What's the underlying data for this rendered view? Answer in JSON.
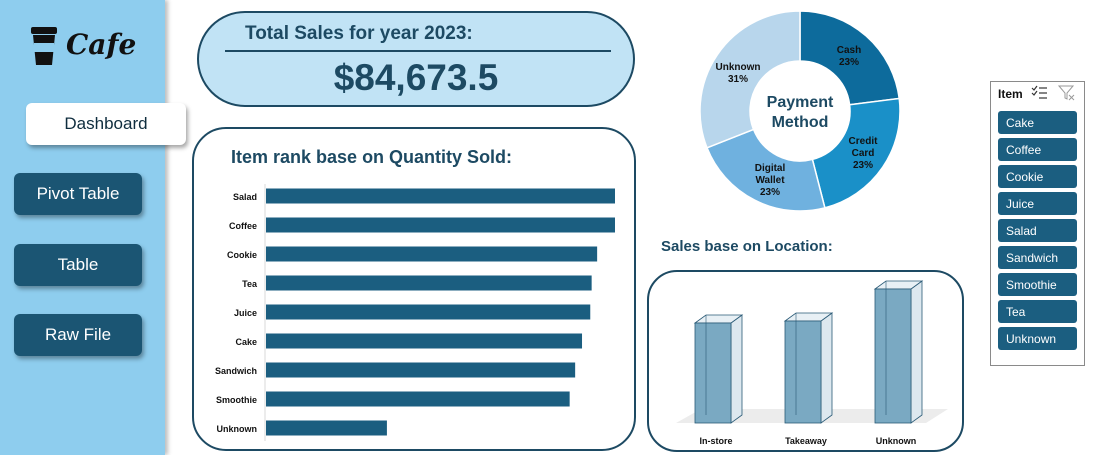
{
  "app": {
    "logo_text": "Cafe"
  },
  "sidebar": {
    "items": [
      {
        "label": "Dashboard",
        "active": true
      },
      {
        "label": "Pivot Table",
        "active": false
      },
      {
        "label": "Table",
        "active": false
      },
      {
        "label": "Raw File",
        "active": false
      }
    ]
  },
  "total_sales": {
    "title": "Total Sales for year 2023:",
    "value": "$84,673.5"
  },
  "colors": {
    "sidebar": "#8ecdee",
    "accent": "#1d4a63",
    "bar": "#1b5e80",
    "card_fill": "#c1e3f5"
  },
  "chart_data": [
    {
      "type": "bar",
      "orientation": "horizontal",
      "title": "Item rank base on Quantity Sold:",
      "categories": [
        "Salad",
        "Coffee",
        "Cookie",
        "Tea",
        "Juice",
        "Cake",
        "Sandwich",
        "Smoothie",
        "Unknown"
      ],
      "values": [
        1270,
        1270,
        1205,
        1185,
        1180,
        1150,
        1125,
        1105,
        440
      ],
      "xlim": [
        0,
        1270
      ],
      "axes_visible": false,
      "grid": false,
      "legend": "none"
    },
    {
      "type": "pie",
      "donut": true,
      "center_text": "Payment Method",
      "slices": [
        {
          "label": "Cash",
          "percent_label": "23%",
          "value": 23,
          "color": "#0d6b9c"
        },
        {
          "label": "Credit Card",
          "percent_label": "23%",
          "value": 23,
          "color": "#1a90c8"
        },
        {
          "label": "Digital Wallet",
          "percent_label": "23%",
          "value": 23,
          "color": "#6fb1df"
        },
        {
          "label": "Unknown",
          "percent_label": "31%",
          "value": 31,
          "color": "#b8d6ec"
        }
      ],
      "legend": "none"
    },
    {
      "type": "bar",
      "style": "3d-column",
      "title": "Sales base on Location:",
      "categories": [
        "In-store",
        "Takeaway",
        "Unknown"
      ],
      "values": [
        25,
        25.5,
        33.5
      ],
      "ylim": [
        0,
        35
      ],
      "axes_visible": false,
      "legend": "none"
    }
  ],
  "slicer": {
    "title": "Item",
    "multi_select_icon": "multi-select-icon",
    "clear_filter_icon": "clear-filter-icon",
    "items": [
      "Cake",
      "Coffee",
      "Cookie",
      "Juice",
      "Salad",
      "Sandwich",
      "Smoothie",
      "Tea",
      "Unknown"
    ]
  }
}
